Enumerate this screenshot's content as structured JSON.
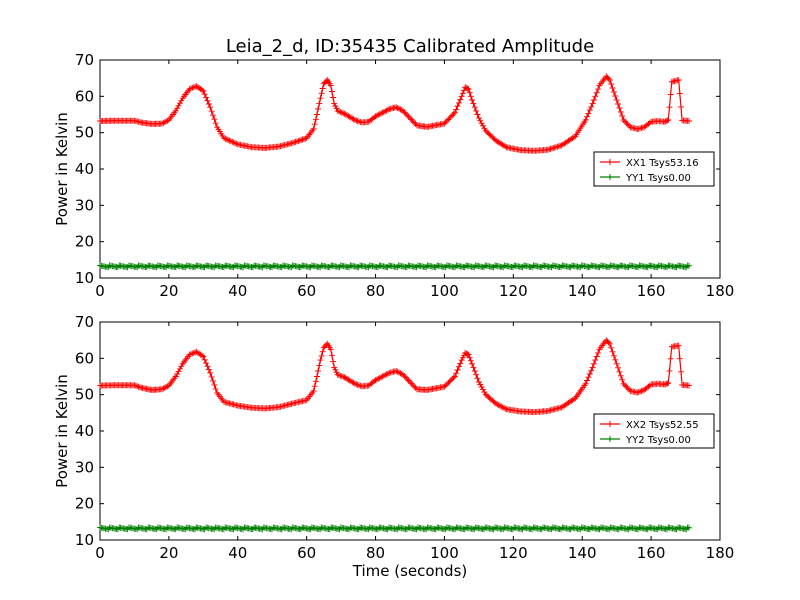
{
  "title": "Leia_2_d, ID:35435 Calibrated Amplitude",
  "colors": {
    "xx": "#ff0000",
    "yy": "#008000"
  },
  "chart_data": [
    {
      "type": "line",
      "xlabel": "",
      "ylabel": "Power in Kelvin",
      "xlim": [
        0,
        180
      ],
      "ylim": [
        10,
        70
      ],
      "xticks": [
        "0",
        "20",
        "40",
        "60",
        "80",
        "100",
        "120",
        "140",
        "160",
        "180"
      ],
      "yticks": [
        "10",
        "20",
        "30",
        "40",
        "50",
        "60",
        "70"
      ],
      "legend_position": "center-right",
      "series": [
        {
          "name": "XX1 Tsys53.16",
          "color": "#ff0000",
          "marker": "+",
          "points": [
            [
              0,
              53.2
            ],
            [
              5,
              53.3
            ],
            [
              10,
              53.3
            ],
            [
              12,
              52.8
            ],
            [
              15,
              52.4
            ],
            [
              18,
              52.5
            ],
            [
              20,
              53.5
            ],
            [
              22,
              56
            ],
            [
              24,
              59.5
            ],
            [
              26,
              62
            ],
            [
              28,
              62.8
            ],
            [
              30,
              61.5
            ],
            [
              32,
              57
            ],
            [
              34,
              51.5
            ],
            [
              36,
              48.5
            ],
            [
              40,
              46.8
            ],
            [
              44,
              46
            ],
            [
              48,
              45.8
            ],
            [
              52,
              46.2
            ],
            [
              56,
              47.2
            ],
            [
              60,
              48.5
            ],
            [
              62,
              51
            ],
            [
              63,
              55
            ],
            [
              64,
              59.5
            ],
            [
              65,
              63.5
            ],
            [
              66,
              64.5
            ],
            [
              67,
              63
            ],
            [
              68,
              58
            ],
            [
              69,
              56
            ],
            [
              71,
              55.2
            ],
            [
              74,
              53.5
            ],
            [
              76,
              52.8
            ],
            [
              78,
              53
            ],
            [
              80,
              54.5
            ],
            [
              84,
              56.5
            ],
            [
              86,
              57
            ],
            [
              88,
              56
            ],
            [
              90,
              54
            ],
            [
              92,
              52
            ],
            [
              95,
              51.6
            ],
            [
              100,
              52.5
            ],
            [
              103,
              55.5
            ],
            [
              105,
              60
            ],
            [
              106,
              62.5
            ],
            [
              107,
              62
            ],
            [
              108,
              59
            ],
            [
              110,
              54
            ],
            [
              112,
              50.5
            ],
            [
              115,
              47.8
            ],
            [
              118,
              46
            ],
            [
              122,
              45.2
            ],
            [
              126,
              45
            ],
            [
              130,
              45.3
            ],
            [
              134,
              46.5
            ],
            [
              138,
              49
            ],
            [
              141,
              53.5
            ],
            [
              143,
              58
            ],
            [
              145,
              63
            ],
            [
              147,
              65.5
            ],
            [
              148,
              64.5
            ],
            [
              150,
              59
            ],
            [
              152,
              53.5
            ],
            [
              154,
              51.5
            ],
            [
              156,
              51
            ],
            [
              158,
              51.5
            ],
            [
              160,
              53
            ],
            [
              162,
              53.2
            ],
            [
              164,
              53
            ],
            [
              165,
              53.5
            ],
            [
              166,
              64
            ],
            [
              168,
              64.5
            ],
            [
              169,
              53.4
            ],
            [
              171,
              53.2
            ]
          ]
        },
        {
          "name": "YY1 Tsys0.00",
          "color": "#008000",
          "marker": "+",
          "points": [
            [
              0,
              13.2
            ],
            [
              171,
              13.2
            ]
          ]
        }
      ]
    },
    {
      "type": "line",
      "xlabel": "Time (seconds)",
      "ylabel": "Power in Kelvin",
      "xlim": [
        0,
        180
      ],
      "ylim": [
        10,
        70
      ],
      "xticks": [
        "0",
        "20",
        "40",
        "60",
        "80",
        "100",
        "120",
        "140",
        "160",
        "180"
      ],
      "yticks": [
        "10",
        "20",
        "30",
        "40",
        "50",
        "60",
        "70"
      ],
      "legend_position": "center-right",
      "series": [
        {
          "name": "XX2 Tsys52.55",
          "color": "#ff0000",
          "marker": "+",
          "points": [
            [
              0,
              52.5
            ],
            [
              5,
              52.6
            ],
            [
              10,
              52.6
            ],
            [
              12,
              51.9
            ],
            [
              15,
              51.3
            ],
            [
              18,
              51.5
            ],
            [
              20,
              52.5
            ],
            [
              22,
              55
            ],
            [
              24,
              58.5
            ],
            [
              26,
              61
            ],
            [
              28,
              61.8
            ],
            [
              30,
              60.5
            ],
            [
              32,
              56
            ],
            [
              34,
              50.5
            ],
            [
              36,
              48
            ],
            [
              40,
              47
            ],
            [
              44,
              46.4
            ],
            [
              48,
              46.2
            ],
            [
              52,
              46.6
            ],
            [
              56,
              47.6
            ],
            [
              60,
              48.5
            ],
            [
              62,
              51
            ],
            [
              63,
              55
            ],
            [
              64,
              59.5
            ],
            [
              65,
              63
            ],
            [
              66,
              64
            ],
            [
              67,
              62.5
            ],
            [
              68,
              57.5
            ],
            [
              69,
              55.5
            ],
            [
              71,
              54.8
            ],
            [
              74,
              53
            ],
            [
              76,
              52.3
            ],
            [
              78,
              52.5
            ],
            [
              80,
              54
            ],
            [
              84,
              56
            ],
            [
              86,
              56.5
            ],
            [
              88,
              55.5
            ],
            [
              90,
              53.5
            ],
            [
              92,
              51.5
            ],
            [
              95,
              51.3
            ],
            [
              100,
              52.2
            ],
            [
              103,
              55
            ],
            [
              105,
              59.5
            ],
            [
              106,
              61.5
            ],
            [
              107,
              61
            ],
            [
              108,
              58.5
            ],
            [
              110,
              53.5
            ],
            [
              112,
              50
            ],
            [
              115,
              47.5
            ],
            [
              118,
              46
            ],
            [
              122,
              45.4
            ],
            [
              126,
              45.2
            ],
            [
              130,
              45.5
            ],
            [
              134,
              46.5
            ],
            [
              138,
              49
            ],
            [
              141,
              53
            ],
            [
              143,
              57.5
            ],
            [
              145,
              62.5
            ],
            [
              147,
              65
            ],
            [
              148,
              64
            ],
            [
              150,
              58.5
            ],
            [
              152,
              53
            ],
            [
              154,
              51
            ],
            [
              156,
              50.6
            ],
            [
              158,
              51.3
            ],
            [
              160,
              52.8
            ],
            [
              162,
              53
            ],
            [
              164,
              52.8
            ],
            [
              165,
              53.2
            ],
            [
              166,
              63.2
            ],
            [
              168,
              63.5
            ],
            [
              169,
              52.7
            ],
            [
              171,
              52.5
            ]
          ]
        },
        {
          "name": "YY2 Tsys0.00",
          "color": "#008000",
          "marker": "+",
          "points": [
            [
              0,
              13.2
            ],
            [
              171,
              13.2
            ]
          ]
        }
      ]
    }
  ]
}
